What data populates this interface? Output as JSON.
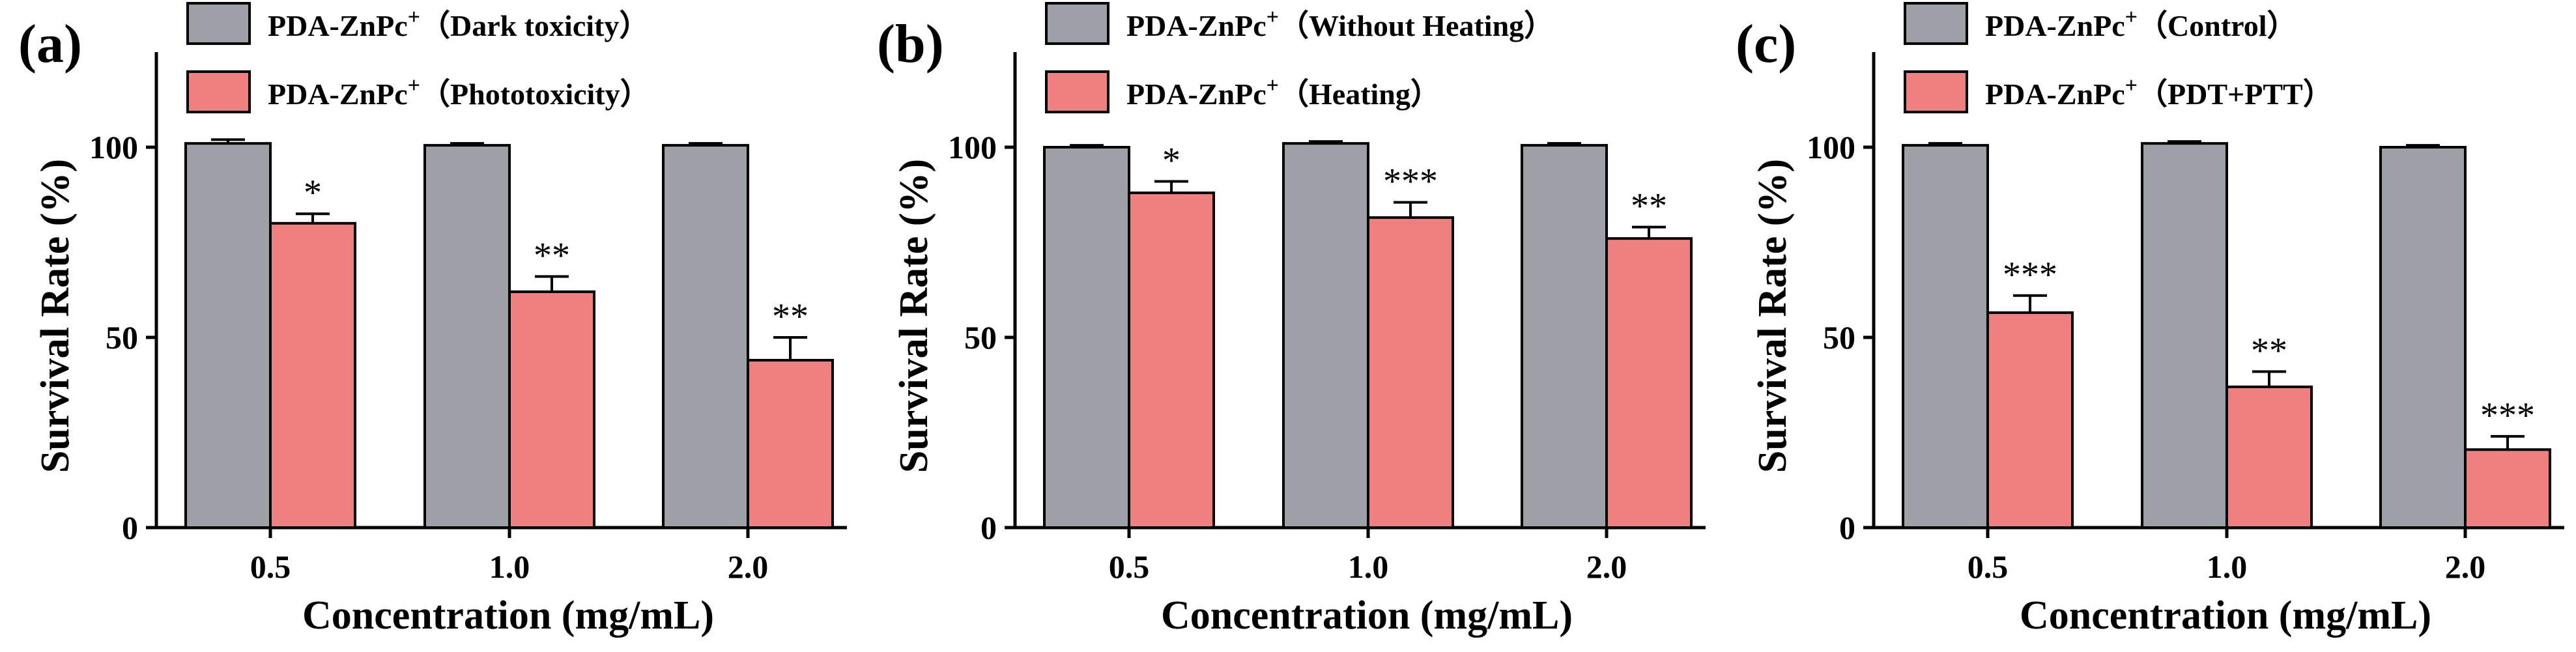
{
  "colors": {
    "control": "#9ea0a8",
    "treated": "#f08080",
    "axis": "#000000"
  },
  "chart_data": [
    {
      "type": "bar",
      "panel_label": "(a)",
      "categories": [
        "0.5",
        "1.0",
        "2.0"
      ],
      "xlabel": "Concentration (mg/mL)",
      "ylabel": "Survival Rate (%)",
      "ylim": [
        0,
        125
      ],
      "yticks": [
        "0",
        "50",
        "100"
      ],
      "legend_position": "top-left",
      "series": [
        {
          "name": "PDA-ZnPc",
          "superscript": "+",
          "suffix": "（Dark toxicity）",
          "values": [
            101,
            100.5,
            100.5
          ],
          "errors": [
            1,
            0.5,
            0.5
          ],
          "color_key": "control"
        },
        {
          "name": "PDA-ZnPc",
          "superscript": "+",
          "suffix": "（Phototoxicity）",
          "values": [
            80,
            62,
            44
          ],
          "errors": [
            2.5,
            4,
            6
          ],
          "color_key": "treated"
        }
      ],
      "annotations": [
        "*",
        "**",
        "**"
      ]
    },
    {
      "type": "bar",
      "panel_label": "(b)",
      "categories": [
        "0.5",
        "1.0",
        "2.0"
      ],
      "xlabel": "Concentration (mg/mL)",
      "ylabel": "Survival Rate (%)",
      "ylim": [
        0,
        125
      ],
      "yticks": [
        "0",
        "50",
        "100"
      ],
      "legend_position": "top-left",
      "series": [
        {
          "name": "PDA-ZnPc",
          "superscript": "+",
          "suffix": "（Without Heating）",
          "values": [
            100,
            101,
            100.5
          ],
          "errors": [
            0.5,
            0.5,
            0.5
          ],
          "color_key": "control"
        },
        {
          "name": "PDA-ZnPc",
          "superscript": "+",
          "suffix": "（Heating）",
          "values": [
            88,
            81.5,
            76
          ],
          "errors": [
            3,
            4,
            3
          ],
          "color_key": "treated"
        }
      ],
      "annotations": [
        "*",
        "***",
        "**"
      ]
    },
    {
      "type": "bar",
      "panel_label": "(c)",
      "categories": [
        "0.5",
        "1.0",
        "2.0"
      ],
      "xlabel": "Concentration (mg/mL)",
      "ylabel": "Survival Rate (%)",
      "ylim": [
        0,
        125
      ],
      "yticks": [
        "0",
        "50",
        "100"
      ],
      "legend_position": "top-left",
      "series": [
        {
          "name": "PDA-ZnPc",
          "superscript": "+",
          "suffix": "（Control）",
          "values": [
            100.5,
            101,
            100
          ],
          "errors": [
            0.5,
            0.5,
            0.5
          ],
          "color_key": "control"
        },
        {
          "name": "PDA-ZnPc",
          "superscript": "+",
          "suffix": "（PDT+PTT）",
          "values": [
            56.5,
            37,
            20.5
          ],
          "errors": [
            4.5,
            4,
            3.5
          ],
          "color_key": "treated"
        }
      ],
      "annotations": [
        "***",
        "**",
        "***"
      ]
    }
  ]
}
